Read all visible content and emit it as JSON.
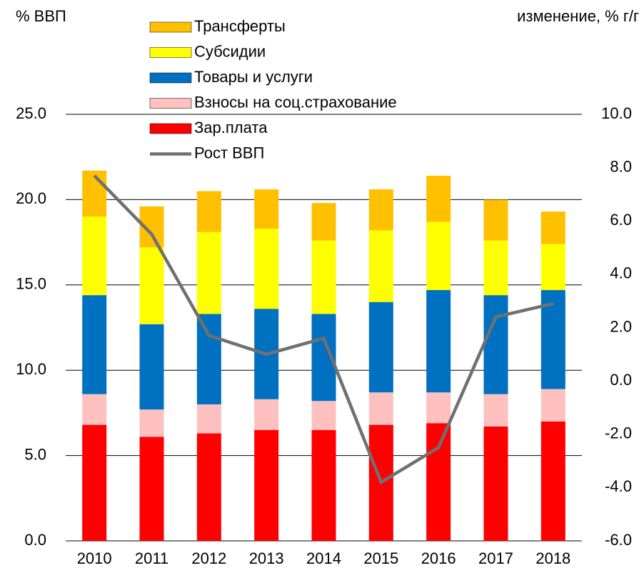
{
  "chart_data": {
    "type": "bar",
    "ylabel": "% ВВП",
    "y2label": "изменение, % г/г",
    "categories": [
      "2010",
      "2011",
      "2012",
      "2013",
      "2014",
      "2015",
      "2016",
      "2017",
      "2018"
    ],
    "stacked": true,
    "legend": "upper left",
    "grid": true,
    "series": [
      {
        "name": "Зар.плата",
        "color": "#ff0000",
        "values": [
          6.8,
          6.1,
          6.3,
          6.5,
          6.5,
          6.8,
          6.9,
          6.7,
          7.0
        ]
      },
      {
        "name": "Взносы на соц.страхование",
        "color": "#ffc0c0",
        "values": [
          1.8,
          1.6,
          1.7,
          1.8,
          1.7,
          1.9,
          1.8,
          1.9,
          1.9
        ]
      },
      {
        "name": "Товары и услуги",
        "color": "#0070c0",
        "values": [
          5.8,
          5.0,
          5.3,
          5.3,
          5.1,
          5.3,
          6.0,
          5.8,
          5.8
        ]
      },
      {
        "name": "Субсидии",
        "color": "#ffff00",
        "values": [
          4.6,
          4.5,
          4.8,
          4.7,
          4.3,
          4.2,
          4.0,
          3.2,
          2.7
        ]
      },
      {
        "name": "Трансферты",
        "color": "#ffc000",
        "values": [
          2.7,
          2.4,
          2.4,
          2.3,
          2.2,
          2.4,
          2.7,
          2.4,
          1.9
        ]
      },
      {
        "name": "Рост ВВП",
        "type": "line",
        "axis": "y2",
        "color": "#707070",
        "values": [
          7.7,
          5.5,
          1.7,
          1.0,
          1.6,
          -3.8,
          -2.5,
          2.4,
          2.9
        ]
      }
    ],
    "ylim": [
      0,
      25
    ],
    "yticks": [
      {
        "value": 0,
        "label": "0.0"
      },
      {
        "value": 5,
        "label": "5.0"
      },
      {
        "value": 10,
        "label": "10.0"
      },
      {
        "value": 15,
        "label": "15.0"
      },
      {
        "value": 20,
        "label": "20.0"
      },
      {
        "value": 25,
        "label": "25.0"
      }
    ],
    "y2lim": [
      -6,
      10
    ],
    "y2ticks": [
      {
        "value": -6,
        "label": "-6.0"
      },
      {
        "value": -4,
        "label": "-4.0"
      },
      {
        "value": -2,
        "label": "-2.0"
      },
      {
        "value": 0,
        "label": "0.0"
      },
      {
        "value": 2,
        "label": "2.0"
      },
      {
        "value": 4,
        "label": "4.0"
      },
      {
        "value": 6,
        "label": "6.0"
      },
      {
        "value": 8,
        "label": "8.0"
      },
      {
        "value": 10,
        "label": "10.0"
      }
    ]
  }
}
